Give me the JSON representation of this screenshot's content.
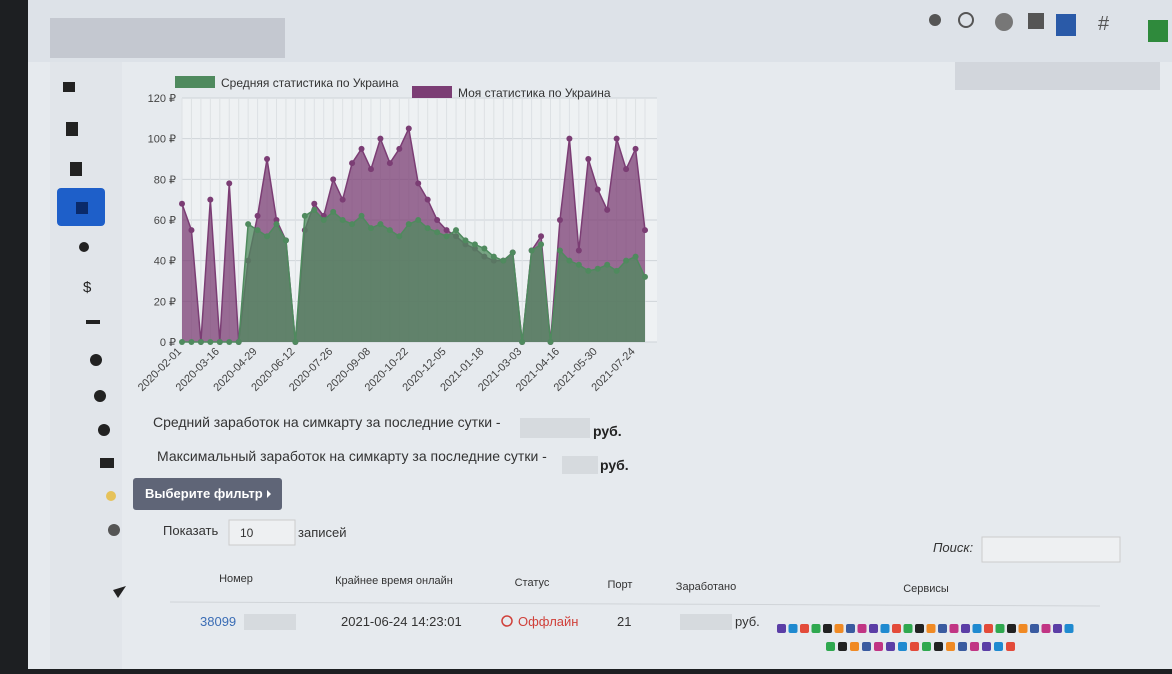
{
  "chart_data": {
    "type": "area",
    "categories": [
      "2020-02-01",
      null,
      null,
      null,
      "2020-03-16",
      null,
      null,
      null,
      "2020-04-29",
      null,
      null,
      null,
      "2020-06-12",
      null,
      null,
      null,
      "2020-07-26",
      null,
      null,
      null,
      "2020-09-08",
      null,
      null,
      null,
      "2020-10-22",
      null,
      null,
      null,
      "2020-12-05",
      null,
      null,
      null,
      "2021-01-18",
      null,
      null,
      null,
      "2021-03-03",
      null,
      null,
      null,
      "2021-04-16",
      null,
      null,
      null,
      "2021-05-30",
      null,
      null,
      null,
      "2021-07-24",
      null
    ],
    "series": [
      {
        "name": "Моя статистика по Украина",
        "color": "#7b3d74",
        "values": [
          68,
          55,
          0,
          70,
          0,
          78,
          0,
          40,
          62,
          90,
          60,
          50,
          0,
          55,
          68,
          62,
          80,
          70,
          88,
          95,
          85,
          100,
          88,
          95,
          105,
          78,
          70,
          60,
          55,
          52,
          48,
          46,
          42,
          40,
          40,
          44,
          0,
          45,
          52,
          0,
          60,
          100,
          45,
          90,
          75,
          65,
          100,
          85,
          95,
          55
        ]
      },
      {
        "name": "Средняя статистика по Украина",
        "color": "#4f8a5e",
        "values": [
          0,
          0,
          0,
          0,
          0,
          0,
          0,
          58,
          55,
          52,
          58,
          50,
          0,
          62,
          65,
          60,
          64,
          60,
          58,
          62,
          56,
          58,
          55,
          52,
          58,
          60,
          56,
          54,
          52,
          55,
          50,
          48,
          46,
          42,
          40,
          44,
          0,
          45,
          48,
          0,
          45,
          40,
          38,
          35,
          36,
          38,
          35,
          40,
          42,
          32
        ]
      }
    ],
    "ylim": [
      0,
      120
    ],
    "yticks": [
      {
        "value": 0,
        "label": "0 ₽"
      },
      {
        "value": 20,
        "label": "20 ₽"
      },
      {
        "value": 40,
        "label": "40 ₽"
      },
      {
        "value": 60,
        "label": "60 ₽"
      },
      {
        "value": 80,
        "label": "80 ₽"
      },
      {
        "value": 100,
        "label": "100 ₽"
      },
      {
        "value": 120,
        "label": "120 ₽"
      }
    ],
    "grid": true
  },
  "stats": {
    "avg_label": "Средний заработок на симкарту за последние сутки -",
    "avg_unit": "руб.",
    "max_label": "Максимальный заработок на симкарту за последние сутки -",
    "max_unit": "руб."
  },
  "filter_button": "Выберите фильтр",
  "length": {
    "show": "Показать",
    "value": "10",
    "suffix": "записей"
  },
  "search_label": "Поиск:",
  "table": {
    "headers": [
      "Номер",
      "Крайнее время онлайн",
      "Статус",
      "Порт",
      "Заработано",
      "Сервисы"
    ],
    "rows": [
      [
        "38099",
        "2021-06-24 14:23:01",
        "Оффлайн",
        "21",
        "руб."
      ]
    ]
  }
}
